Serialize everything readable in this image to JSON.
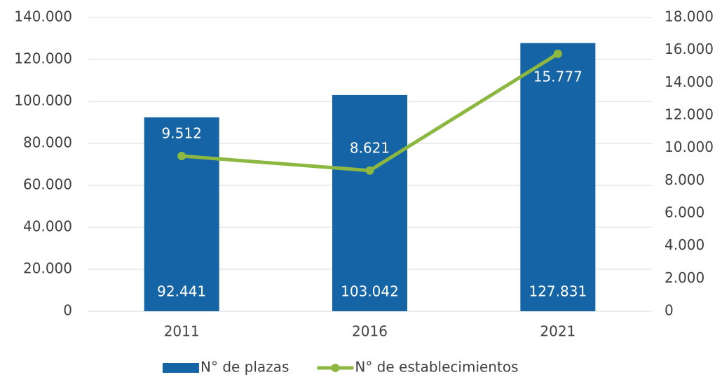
{
  "chart_data": {
    "type": "combo",
    "categories": [
      "2011",
      "2016",
      "2021"
    ],
    "series": [
      {
        "name": "N° de plazas",
        "type": "bar",
        "color": "#1565a6",
        "values": [
          92441,
          103042,
          127831
        ],
        "value_labels": [
          "92.441",
          "103.042",
          "127.831"
        ]
      },
      {
        "name": "N° de establecimientos",
        "type": "line",
        "axis": "y2",
        "color": "#8cb740",
        "values": [
          9512,
          8621,
          15777
        ],
        "value_labels": [
          "9.512",
          "8.621",
          "15.777"
        ]
      }
    ],
    "ylim": [
      0,
      140000
    ],
    "yticks": [
      0,
      {
        "value": 20000,
        "label": "20.000"
      },
      {
        "value": 40000,
        "label": "40.000"
      },
      {
        "value": 60000,
        "label": "60.000"
      },
      {
        "value": 80000,
        "label": "80.000"
      },
      {
        "value": 100000,
        "label": "100.000"
      },
      {
        "value": 120000,
        "label": "120.000"
      },
      {
        "value": 140000,
        "label": "140.000"
      }
    ],
    "y2lim": [
      0,
      18000
    ],
    "y2ticks": [
      0,
      {
        "value": 2000,
        "label": "2.000"
      },
      {
        "value": 4000,
        "label": "4.000"
      },
      {
        "value": 6000,
        "label": "6.000"
      },
      {
        "value": 8000,
        "label": "8.000"
      },
      {
        "value": 10000,
        "label": "10.000"
      },
      {
        "value": 12000,
        "label": "12.000"
      },
      {
        "value": 14000,
        "label": "14.000"
      },
      {
        "value": 16000,
        "label": "16.000"
      },
      {
        "value": 18000,
        "label": "18.000"
      }
    ],
    "grid": true,
    "legend": "bottom"
  }
}
